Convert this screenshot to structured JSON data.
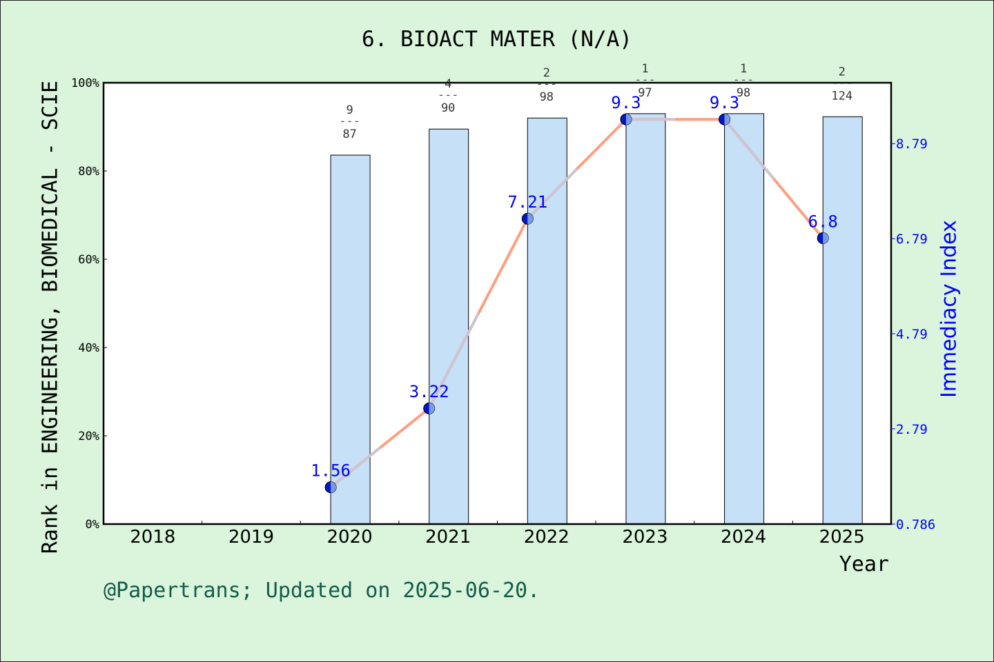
{
  "chart_data": {
    "type": "bar",
    "title": "6. BIOACT MATER (N/A)",
    "xlabel": "Year",
    "ylabel": "Rank in ENGINEERING, BIOMEDICAL - SCIE",
    "y2label": "Immediacy Index",
    "categories": [
      "2018",
      "2019",
      "2020",
      "2021",
      "2022",
      "2023",
      "2024",
      "2025"
    ],
    "ylim": [
      0,
      100
    ],
    "yticks": [
      "0%",
      "20%",
      "40%",
      "60%",
      "80%",
      "100%"
    ],
    "y2lim": [
      0.786,
      10.07
    ],
    "y2ticks": [
      "0.786",
      "2.79",
      "4.79",
      "6.79",
      "8.79"
    ],
    "y2tick_values": [
      0.786,
      2.79,
      4.79,
      6.79,
      8.79
    ],
    "series": [
      {
        "kind": "bar",
        "values": [
          null,
          null,
          83.6,
          89.5,
          92.0,
          93.0,
          93.0,
          92.3
        ],
        "rank_labels": [
          null,
          null,
          {
            "rank": "9",
            "total": "87"
          },
          {
            "rank": "4",
            "total": "90"
          },
          {
            "rank": "2",
            "total": "98"
          },
          {
            "rank": "1",
            "total": "97"
          },
          {
            "rank": "1",
            "total": "98"
          },
          {
            "rank": "2",
            "total": "124"
          }
        ],
        "color": "#c5e0f7"
      },
      {
        "kind": "line",
        "axis": "right",
        "values": [
          null,
          null,
          1.56,
          3.22,
          7.21,
          9.3,
          9.3,
          6.8
        ],
        "labels": [
          null,
          null,
          "1.56",
          "3.22",
          "7.21",
          "9.3",
          "9.3",
          "6.8"
        ],
        "color": "#ff9f7f"
      }
    ],
    "grid": false
  },
  "footer": "@Papertrans; Updated on 2025-06-20.",
  "colors": {
    "background": "#daf5dc",
    "bar": "#c5e0f7",
    "line": "#ff9f7f",
    "right_axis": "#0000ff",
    "footer": "#135c4a"
  }
}
